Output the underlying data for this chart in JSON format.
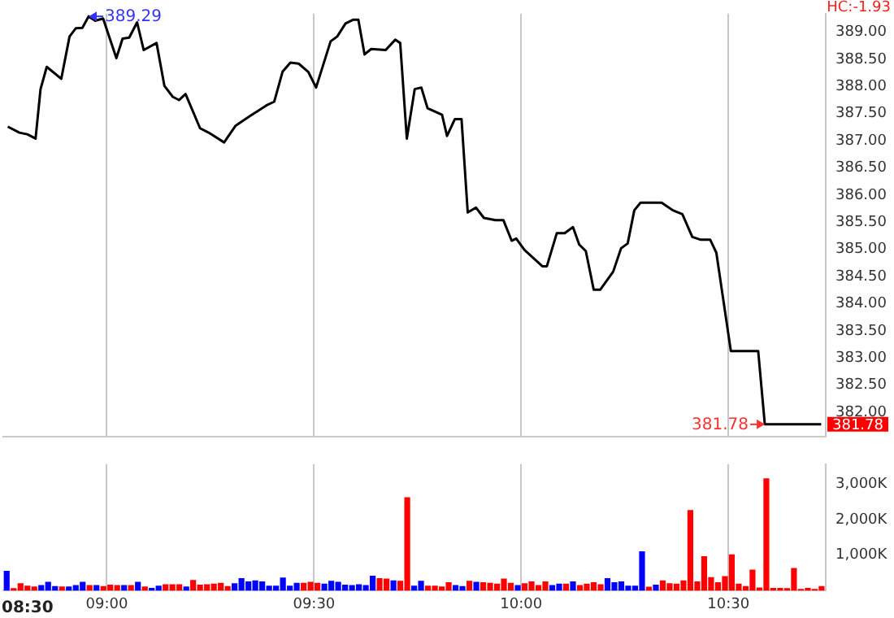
{
  "chart_data": [
    {
      "type": "line",
      "xlim": [
        8.75,
        10.735
      ],
      "xticks": [
        9,
        9.5,
        10,
        10.5
      ],
      "ylim": [
        381.55,
        389.34
      ],
      "yticks": [
        {
          "value": 382,
          "label": "382.00"
        },
        {
          "value": 382.5,
          "label": "382.50"
        },
        {
          "value": 383,
          "label": "383.00"
        },
        {
          "value": 383.5,
          "label": "383.50"
        },
        {
          "value": 384,
          "label": "384.00"
        },
        {
          "value": 384.5,
          "label": "384.50"
        },
        {
          "value": 385,
          "label": "385.00"
        },
        {
          "value": 385.5,
          "label": "385.50"
        },
        {
          "value": 386,
          "label": "386.00"
        },
        {
          "value": 386.5,
          "label": "386.50"
        },
        {
          "value": 387,
          "label": "387.00"
        },
        {
          "value": 387.5,
          "label": "387.50"
        },
        {
          "value": 388,
          "label": "388.00"
        },
        {
          "value": 388.5,
          "label": "388.50"
        },
        {
          "value": 389,
          "label": "389.00"
        }
      ],
      "grid": "x",
      "tick_labels": "y",
      "marker": "none",
      "line_style": "solid",
      "series": [
        {
          "color": "#000000",
          "x": [
            8.761,
            8.789,
            8.808,
            8.828,
            8.84,
            8.855,
            8.89,
            8.91,
            8.925,
            8.941,
            8.956,
            8.972,
            8.991,
            9.023,
            9.038,
            9.054,
            9.073,
            9.089,
            9.12,
            9.139,
            9.159,
            9.174,
            9.19,
            9.225,
            9.248,
            9.283,
            9.311,
            9.346,
            9.385,
            9.404,
            9.424,
            9.443,
            9.463,
            9.486,
            9.505,
            9.54,
            9.556,
            9.576,
            9.595,
            9.607,
            9.622,
            9.638,
            9.673,
            9.696,
            9.708,
            9.724,
            9.743,
            9.759,
            9.774,
            9.809,
            9.821,
            9.84,
            9.856,
            9.871,
            9.891,
            9.91,
            9.938,
            9.957,
            9.977,
            9.988,
            10.008,
            10.051,
            10.062,
            10.086,
            10.105,
            10.125,
            10.14,
            10.156,
            10.175,
            10.191,
            10.222,
            10.241,
            10.257,
            10.273,
            10.288,
            10.339,
            10.366,
            10.389,
            10.413,
            10.432,
            10.456,
            10.471,
            10.506,
            10.572,
            10.588,
            10.724
          ],
          "values": [
            387.26,
            387.15,
            387.12,
            387.04,
            387.95,
            388.36,
            388.14,
            388.92,
            389.07,
            389.08,
            389.29,
            389.21,
            389.25,
            388.52,
            388.88,
            388.9,
            389.18,
            388.67,
            388.8,
            388.01,
            387.81,
            387.75,
            387.86,
            387.23,
            387.14,
            386.97,
            387.28,
            387.46,
            387.65,
            387.72,
            388.27,
            388.44,
            388.42,
            388.27,
            387.98,
            388.83,
            388.92,
            389.16,
            389.23,
            389.23,
            388.59,
            388.69,
            388.67,
            388.86,
            388.8,
            387.04,
            387.95,
            387.98,
            387.6,
            387.48,
            387.09,
            387.4,
            387.4,
            385.68,
            385.77,
            385.58,
            385.54,
            385.54,
            385.16,
            385.2,
            384.99,
            384.69,
            384.69,
            385.3,
            385.3,
            385.41,
            385.09,
            384.97,
            384.26,
            384.26,
            384.59,
            385.02,
            385.11,
            385.72,
            385.86,
            385.86,
            385.72,
            385.65,
            385.23,
            385.18,
            385.18,
            384.94,
            383.13,
            383.13,
            381.78,
            381.78
          ]
        }
      ],
      "annotations": [
        {
          "text": "389.29",
          "x": 8.956,
          "y": 389.29
        },
        {
          "text": "381.78",
          "x": 10.588,
          "y": 381.78
        },
        "381.78",
        "HC:-1.93"
      ]
    },
    {
      "type": "bar",
      "xlim": [
        8.75,
        10.735
      ],
      "xticks": [
        {
          "value": 9,
          "label": "09:00"
        },
        {
          "value": 9.5,
          "label": "09:30"
        },
        {
          "value": 10,
          "label": "10:00"
        },
        {
          "value": 10.5,
          "label": "10:30"
        }
      ],
      "ylim": [
        0,
        3560
      ],
      "annotations": [
        "08:30"
      ],
      "yticks": [
        {
          "value": 1000,
          "label": "1,000K"
        },
        {
          "value": 2000,
          "label": "2,000K"
        },
        {
          "value": 3000,
          "label": "3,000K"
        }
      ],
      "grid": "x",
      "x": [
        8.7583,
        8.775,
        8.7917,
        8.8083,
        8.825,
        8.8417,
        8.8583,
        8.875,
        8.8917,
        8.9083,
        8.925,
        8.9417,
        8.9583,
        8.975,
        8.9917,
        9.0083,
        9.025,
        9.0417,
        9.0583,
        9.075,
        9.0917,
        9.1083,
        9.125,
        9.1417,
        9.1583,
        9.175,
        9.1917,
        9.2083,
        9.225,
        9.2417,
        9.2583,
        9.275,
        9.2917,
        9.3083,
        9.325,
        9.3417,
        9.3583,
        9.375,
        9.3917,
        9.4083,
        9.425,
        9.4417,
        9.4583,
        9.475,
        9.4917,
        9.5083,
        9.525,
        9.5417,
        9.5583,
        9.575,
        9.5917,
        9.6083,
        9.625,
        9.6417,
        9.6583,
        9.675,
        9.6917,
        9.7083,
        9.725,
        9.7417,
        9.7583,
        9.775,
        9.7917,
        9.8083,
        9.825,
        9.8417,
        9.8583,
        9.875,
        9.8917,
        9.9083,
        9.925,
        9.9417,
        9.9583,
        9.975,
        9.9917,
        10.0083,
        10.025,
        10.0417,
        10.0583,
        10.075,
        10.0917,
        10.1083,
        10.125,
        10.1417,
        10.1583,
        10.175,
        10.1917,
        10.2083,
        10.225,
        10.2417,
        10.2583,
        10.275,
        10.2917,
        10.3083,
        10.325,
        10.3417,
        10.3583,
        10.375,
        10.3917,
        10.4083,
        10.425,
        10.4417,
        10.4583,
        10.475,
        10.4917,
        10.5083,
        10.525,
        10.5417,
        10.5583,
        10.575,
        10.5917,
        10.6083,
        10.625,
        10.6417,
        10.6583,
        10.675,
        10.6917,
        10.7083,
        10.725
      ],
      "values": [
        560,
        70,
        210,
        140,
        120,
        160,
        250,
        130,
        120,
        120,
        160,
        250,
        160,
        160,
        130,
        170,
        160,
        160,
        160,
        250,
        120,
        80,
        140,
        180,
        180,
        180,
        120,
        300,
        170,
        180,
        200,
        220,
        130,
        210,
        350,
        260,
        290,
        260,
        140,
        140,
        370,
        140,
        220,
        220,
        250,
        220,
        200,
        280,
        250,
        170,
        160,
        180,
        160,
        420,
        350,
        340,
        290,
        280,
        2630,
        140,
        280,
        140,
        140,
        120,
        240,
        160,
        130,
        280,
        250,
        240,
        220,
        200,
        340,
        220,
        160,
        210,
        260,
        160,
        260,
        160,
        200,
        200,
        260,
        160,
        200,
        240,
        180,
        350,
        240,
        260,
        140,
        140,
        1110,
        110,
        170,
        290,
        210,
        200,
        290,
        2270,
        260,
        970,
        380,
        240,
        410,
        1020,
        200,
        130,
        590,
        90,
        3160,
        80,
        80,
        70,
        640,
        50,
        80,
        50,
        130
      ],
      "colors": [
        "#0000ff",
        "#ff0000",
        "#ff0000",
        "#ff0000",
        "#ff0000",
        "#0000ff",
        "#0000ff",
        "#0000ff",
        "#ff0000",
        "#0000ff",
        "#0000ff",
        "#0000ff",
        "#ff0000",
        "#0000ff",
        "#ff0000",
        "#ff0000",
        "#ff0000",
        "#0000ff",
        "#ff0000",
        "#0000ff",
        "#ff0000",
        "#0000ff",
        "#0000ff",
        "#ff0000",
        "#ff0000",
        "#ff0000",
        "#0000ff",
        "#ff0000",
        "#ff0000",
        "#ff0000",
        "#ff0000",
        "#ff0000",
        "#ff0000",
        "#0000ff",
        "#0000ff",
        "#0000ff",
        "#0000ff",
        "#0000ff",
        "#0000ff",
        "#0000ff",
        "#0000ff",
        "#0000ff",
        "#0000ff",
        "#ff0000",
        "#ff0000",
        "#ff0000",
        "#0000ff",
        "#0000ff",
        "#0000ff",
        "#0000ff",
        "#0000ff",
        "#0000ff",
        "#0000ff",
        "#0000ff",
        "#ff0000",
        "#ff0000",
        "#0000ff",
        "#ff0000",
        "#ff0000",
        "#0000ff",
        "#0000ff",
        "#ff0000",
        "#ff0000",
        "#ff0000",
        "#ff0000",
        "#0000ff",
        "#0000ff",
        "#ff0000",
        "#0000ff",
        "#ff0000",
        "#ff0000",
        "#ff0000",
        "#ff0000",
        "#ff0000",
        "#0000ff",
        "#ff0000",
        "#ff0000",
        "#ff0000",
        "#ff0000",
        "#0000ff",
        "#0000ff",
        "#ff0000",
        "#0000ff",
        "#ff0000",
        "#ff0000",
        "#ff0000",
        "#ff0000",
        "#0000ff",
        "#0000ff",
        "#0000ff",
        "#0000ff",
        "#0000ff",
        "#0000ff",
        "#ff0000",
        "#0000ff",
        "#ff0000",
        "#ff0000",
        "#ff0000",
        "#ff0000",
        "#ff0000",
        "#ff0000",
        "#ff0000",
        "#ff0000",
        "#ff0000",
        "#ff0000",
        "#ff0000",
        "#ff0000",
        "#ff0000",
        "#ff0000",
        "#ff0000",
        "#ff0000",
        "#ff0000",
        "#ff0000",
        "#ff0000",
        "#ff0000",
        "#ff0000",
        "#ff0000",
        "#ff0000",
        "#ff0000"
      ]
    }
  ]
}
